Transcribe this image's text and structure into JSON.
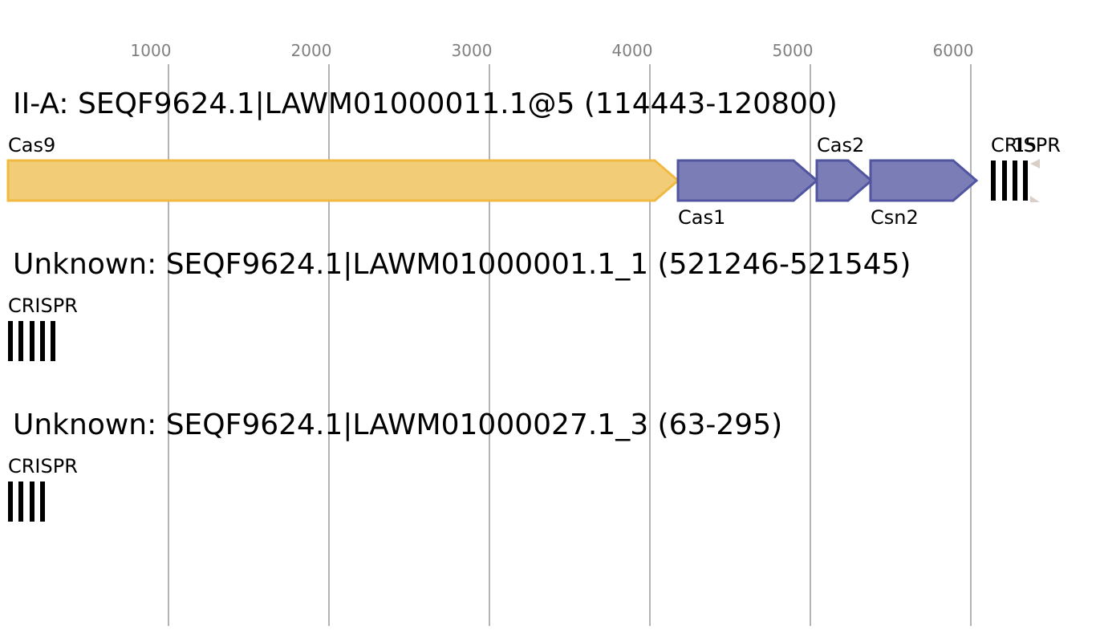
{
  "axis": {
    "ticks": [
      "1000",
      "2000",
      "3000",
      "4000",
      "5000",
      "6000"
    ]
  },
  "colors": {
    "cas9_fill": "#f2cc77",
    "cas9_stroke": "#f0b940",
    "cas_fill": "#7b7db7",
    "cas_stroke": "#5155a0",
    "crispr": "#000000",
    "grid": "#b4b4b4",
    "tick_text": "#808080",
    "unknown_fill": "#d9cfc8"
  },
  "loci": [
    {
      "title": "II-A: SEQF9624.1|LAWM01000011.1@5 (114443-120800)",
      "genes": [
        {
          "label": "Cas9",
          "label_pos": "above",
          "color": "cas9",
          "icon": "right-arrow-gene"
        },
        {
          "label": "Cas1",
          "label_pos": "below",
          "color": "cas",
          "icon": "right-arrow-gene"
        },
        {
          "label": "Cas2",
          "label_pos": "above",
          "color": "cas",
          "icon": "right-arrow-gene"
        },
        {
          "label": "Csn2",
          "label_pos": "below",
          "color": "cas",
          "icon": "right-arrow-gene"
        }
      ],
      "crispr": {
        "label": "CRISPR",
        "repeats": 4
      },
      "extra_label": "15"
    },
    {
      "title": "Unknown: SEQF9624.1|LAWM01000001.1_1 (521246-521545)",
      "genes": [],
      "crispr": {
        "label": "CRISPR",
        "repeats": 5
      }
    },
    {
      "title": "Unknown: SEQF9624.1|LAWM01000027.1_3 (63-295)",
      "genes": [],
      "crispr": {
        "label": "CRISPR",
        "repeats": 4
      }
    }
  ]
}
